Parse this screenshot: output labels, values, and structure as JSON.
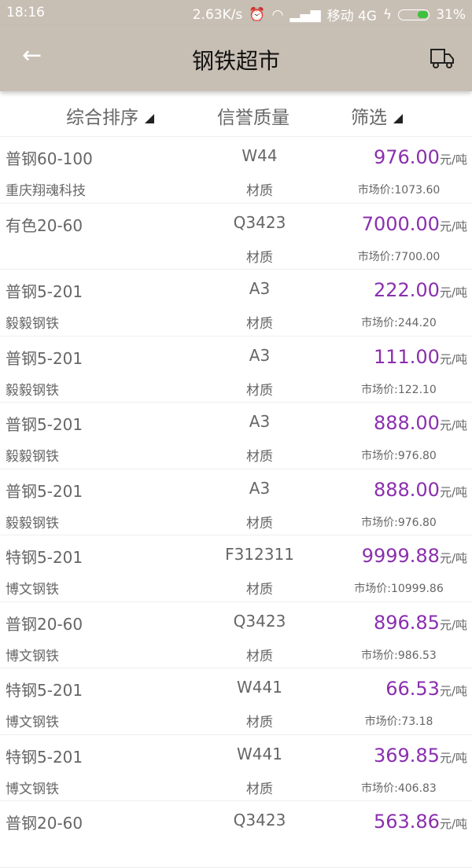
{
  "status": {
    "time": "18:16",
    "speed": "2.63K/s",
    "carrier": "移动 4G",
    "battery": "31%"
  },
  "header": {
    "back": "←",
    "title": "钢铁超市",
    "icon": "truck-icon"
  },
  "filters": {
    "sort": "综合排序",
    "credit": "信誉质量",
    "filter": "筛选"
  },
  "accent": "#8a2fae",
  "unit": "元/吨",
  "items": [
    {
      "name": "普钢60-100",
      "company": "重庆翔魂科技",
      "spec": "W44",
      "material": "材质",
      "price": "976.00",
      "market": "市场价:1073.60"
    },
    {
      "name": "有色20-60",
      "company": "",
      "spec": "Q3423",
      "material": "材质",
      "price": "7000.00",
      "market": "市场价:7700.00"
    },
    {
      "name": "普钢5-201",
      "company": "毅毅钢铁",
      "spec": "A3",
      "material": "材质",
      "price": "222.00",
      "market": "市场价:244.20"
    },
    {
      "name": "普钢5-201",
      "company": "毅毅钢铁",
      "spec": "A3",
      "material": "材质",
      "price": "111.00",
      "market": "市场价:122.10"
    },
    {
      "name": "普钢5-201",
      "company": "毅毅钢铁",
      "spec": "A3",
      "material": "材质",
      "price": "888.00",
      "market": "市场价:976.80"
    },
    {
      "name": "普钢5-201",
      "company": "毅毅钢铁",
      "spec": "A3",
      "material": "材质",
      "price": "888.00",
      "market": "市场价:976.80"
    },
    {
      "name": "特钢5-201",
      "company": "博文钢铁",
      "spec": "F312311",
      "material": "材质",
      "price": "9999.88",
      "market": "市场价:10999.86"
    },
    {
      "name": "普钢20-60",
      "company": "博文钢铁",
      "spec": "Q3423",
      "material": "材质",
      "price": "896.85",
      "market": "市场价:986.53"
    },
    {
      "name": "特钢5-201",
      "company": "博文钢铁",
      "spec": "W441",
      "material": "材质",
      "price": "66.53",
      "market": "市场价:73.18"
    },
    {
      "name": "特钢5-201",
      "company": "博文钢铁",
      "spec": "W441",
      "material": "材质",
      "price": "369.85",
      "market": "市场价:406.83"
    },
    {
      "name": "普钢20-60",
      "company": "",
      "spec": "Q3423",
      "material": "",
      "price": "563.86",
      "market": ""
    }
  ]
}
